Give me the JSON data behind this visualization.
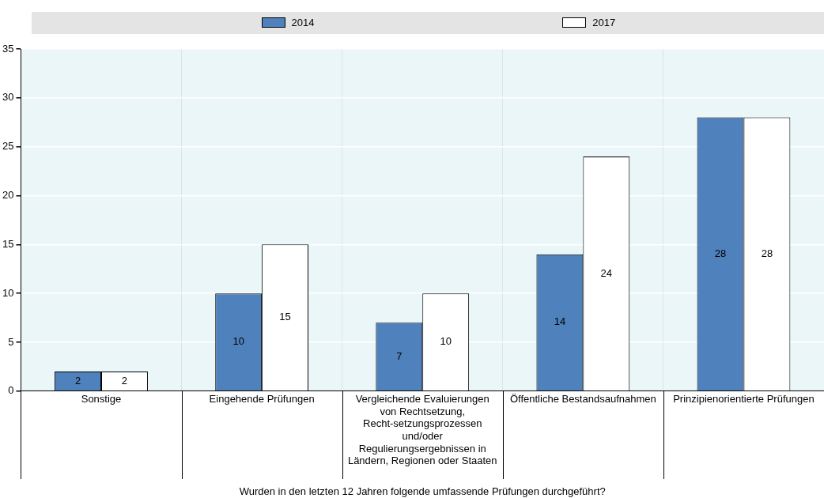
{
  "chart_data": {
    "type": "bar",
    "xlabel": "Wurden in den letzten 12 Jahren folgende umfassende Prüfungen durchgeführt?",
    "categories": [
      "Sonstige",
      "Eingehende Prüfungen",
      "Vergleichende Evaluierungen von Rechtsetzung, Recht-setzungsprozessen und/oder Regulierungsergebnissen in Ländern, Regionen oder Staaten",
      "Öffentliche Bestandsaufnahmen",
      "Prinzipienorientierte Prüfungen"
    ],
    "series": [
      {
        "name": "2014",
        "color": "#4f81bd",
        "values": [
          2,
          10,
          7,
          14,
          28
        ]
      },
      {
        "name": "2017",
        "color": "#ffffff",
        "values": [
          2,
          15,
          10,
          24,
          28
        ]
      }
    ],
    "ylim": [
      0,
      35
    ],
    "yticks": [
      0,
      5,
      10,
      15,
      20,
      25,
      30,
      35
    ],
    "grid": "y",
    "legend": "top",
    "data_labels": true
  }
}
